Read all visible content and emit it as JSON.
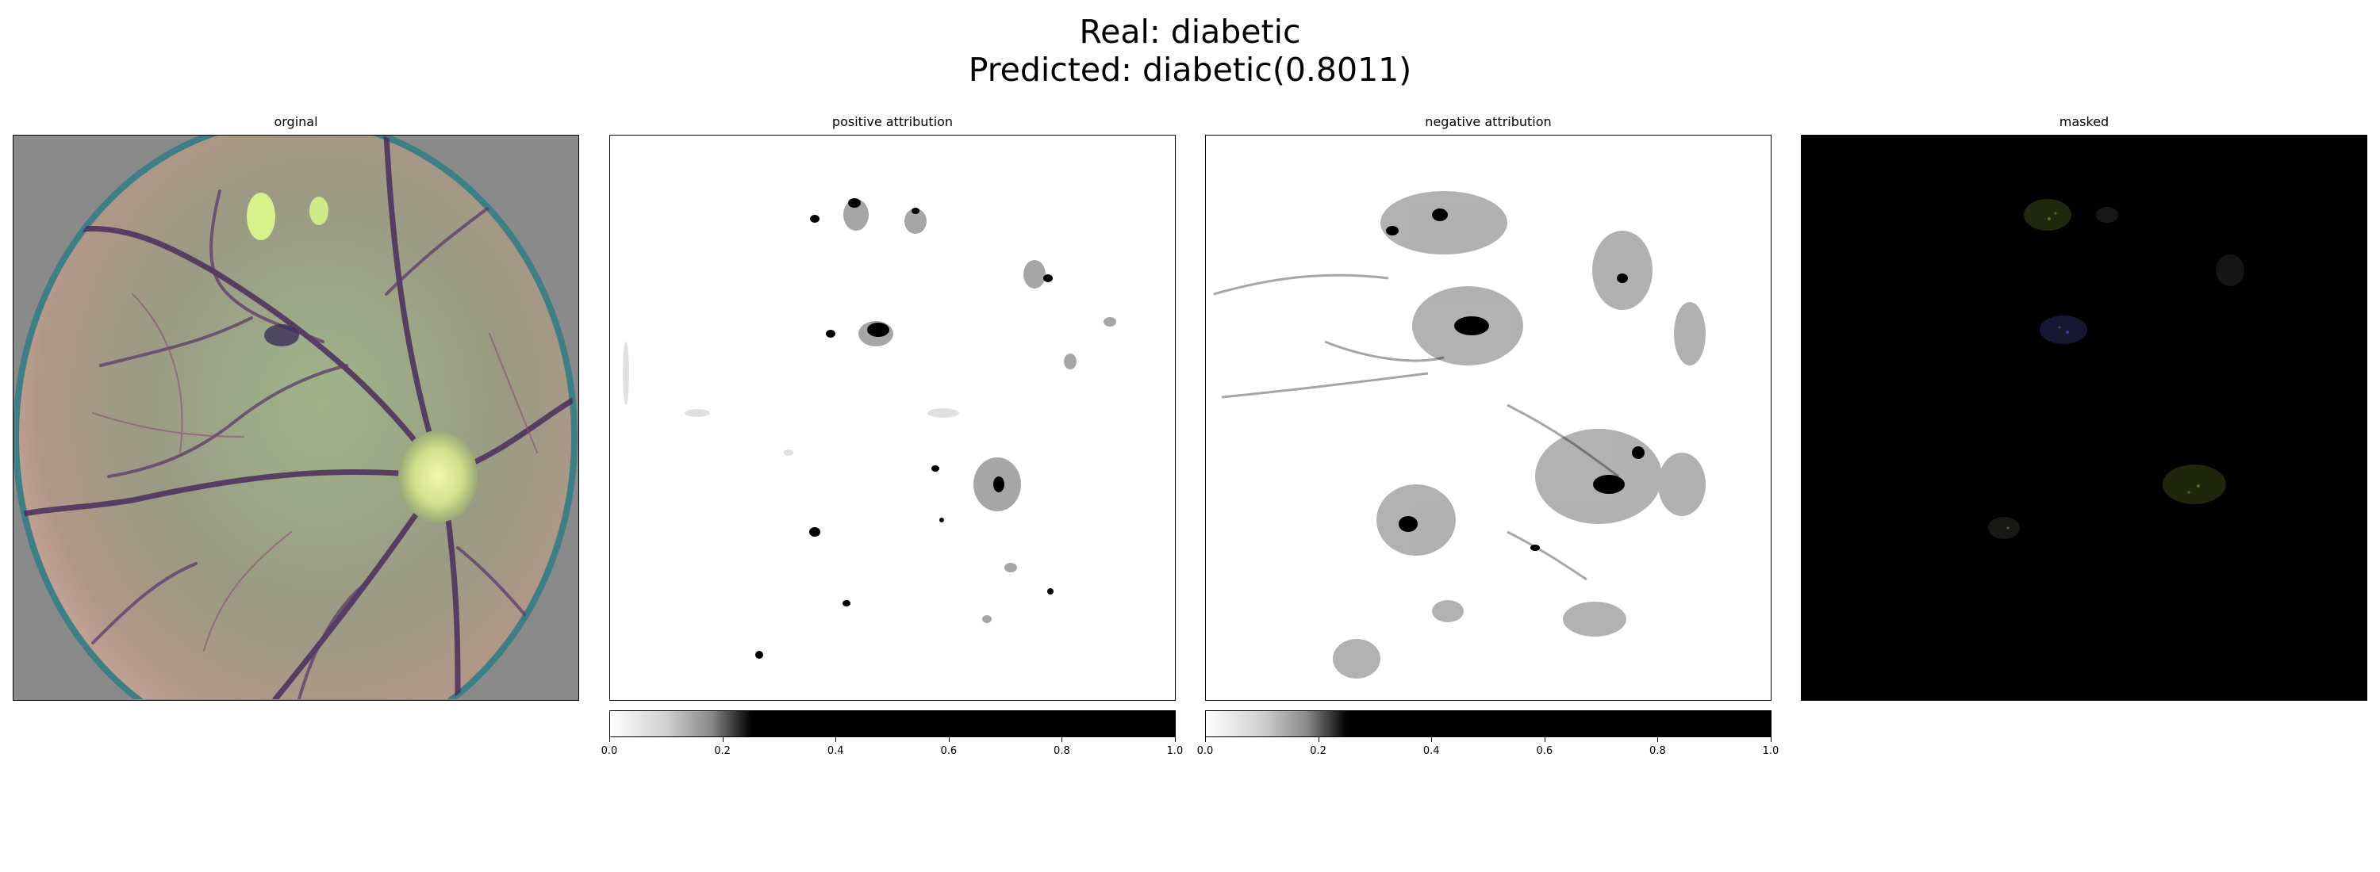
{
  "title": {
    "line1": "Real: diabetic",
    "line2": "Predicted: diabetic(0.8011)"
  },
  "panels": [
    {
      "title": "orginal"
    },
    {
      "title": "positive attribution"
    },
    {
      "title": "negative attribution"
    },
    {
      "title": "masked"
    }
  ],
  "colorbar": {
    "ticks": [
      "0.0",
      "0.2",
      "0.4",
      "0.6",
      "0.8",
      "1.0"
    ],
    "tick_values": [
      0.0,
      0.2,
      0.4,
      0.6,
      0.8,
      1.0
    ]
  },
  "colors": {
    "background_original": "#8a8a8a",
    "masked_background": "#000000"
  }
}
